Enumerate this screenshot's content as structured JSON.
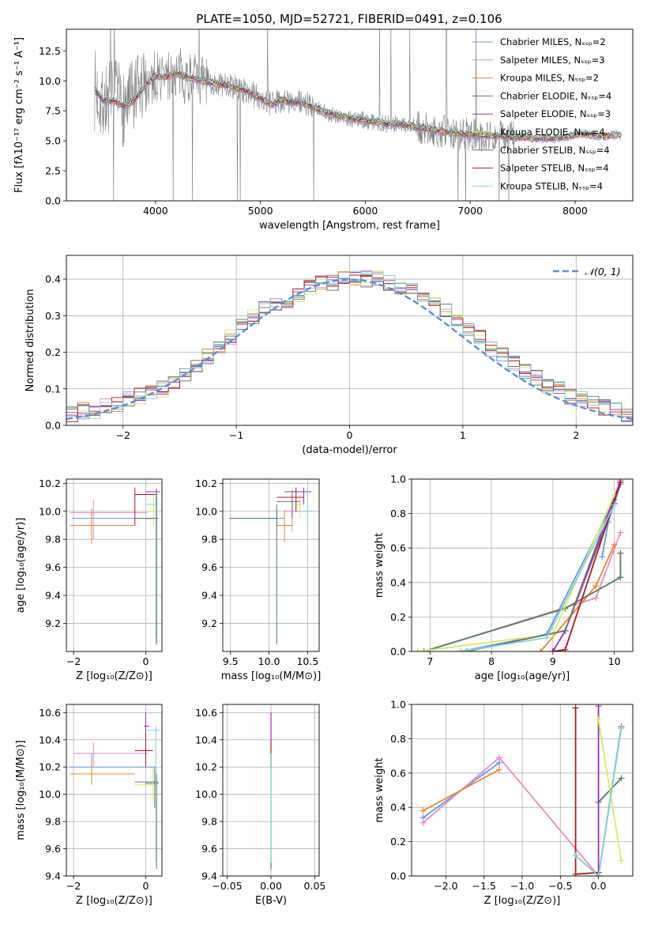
{
  "title": "PLATE=1050, MJD=52721, FIBERID=0491, z=0.106",
  "colors": [
    "#6495ED",
    "#E78AC3",
    "#E6862F",
    "#4E7F62",
    "#9B30B8",
    "#D4EE5E",
    "#6E6E6E",
    "#B0171F",
    "#7FD6D6"
  ],
  "chart_data": [
    {
      "id": "spectrum",
      "type": "line",
      "xlabel": "wavelength [Angstrom, rest frame]",
      "ylabel": "Flux [fλ10⁻¹⁷ erg cm⁻² s⁻¹ A⁻¹]",
      "xlim": [
        3150,
        8550
      ],
      "ylim": [
        0,
        14.3
      ],
      "xticks": [
        "4000",
        "5000",
        "6000",
        "7000",
        "8000"
      ],
      "xtick_values": [
        4000,
        5000,
        6000,
        7000,
        8000
      ],
      "yticks": [
        "0.0",
        "2.5",
        "5.0",
        "7.5",
        "10.0",
        "12.5"
      ],
      "ytick_values": [
        0,
        2.5,
        5,
        7.5,
        10,
        12.5
      ],
      "legend": [
        "Chabrier MILES, Nₛₛₚ=2",
        "Salpeter MILES, Nₛₛₚ=3",
        "Kroupa MILES, Nₛₛₚ=2",
        "Chabrier ELODIE, Nₛₛₚ=4",
        "Salpeter ELODIE, Nₛₛₚ=3",
        "Kroupa ELODIE, Nₛₛₚ=4",
        "Chabrier STELIB, Nₛₛₚ=4",
        "Salpeter STELIB, Nₛₛₚ=4",
        "Kroupa STELIB, Nₛₛₚ=4"
      ],
      "legend_placement": "upper-right",
      "model_x": [
        3420,
        3500,
        3600,
        3700,
        3800,
        3900,
        4000,
        4100,
        4200,
        4300,
        4400,
        4500,
        4600,
        4700,
        4800,
        4900,
        5000,
        5100,
        5200,
        5300,
        5400,
        5500,
        5600,
        5700,
        5800,
        5900,
        6000,
        6100,
        6200,
        6300,
        6400,
        6500,
        6600,
        6700,
        6800,
        6900,
        7000,
        7100,
        7200,
        7300,
        7400,
        7500,
        7600,
        7700,
        7800,
        7900,
        8000,
        8100,
        8200,
        8300,
        8400
      ],
      "model_y": [
        9.2,
        8.4,
        8.3,
        7.9,
        8.4,
        9.6,
        10.4,
        10.3,
        10.6,
        10.3,
        10.1,
        9.9,
        9.7,
        9.6,
        9.3,
        9.0,
        8.6,
        8.0,
        8.4,
        8.2,
        8.2,
        7.8,
        7.4,
        7.2,
        7.0,
        6.8,
        6.7,
        6.6,
        6.4,
        6.4,
        6.3,
        6.1,
        6.0,
        5.8,
        5.7,
        5.6,
        5.5,
        5.5,
        5.4,
        5.4,
        5.3,
        5.3,
        5.2,
        5.2,
        5.2,
        5.3,
        5.5,
        5.6,
        5.4,
        5.4,
        5.5
      ]
    },
    {
      "id": "residuals",
      "type": "step",
      "xlabel": "(data-model)/error",
      "ylabel": "Normed distribution",
      "xlim": [
        -2.5,
        2.5
      ],
      "ylim": [
        0,
        0.465
      ],
      "xticks": [
        "−2",
        "−1",
        "0",
        "1",
        "2"
      ],
      "xtick_values": [
        -2,
        -1,
        0,
        1,
        2
      ],
      "yticks": [
        "0.0",
        "0.1",
        "0.2",
        "0.3",
        "0.4"
      ],
      "ytick_values": [
        0,
        0.1,
        0.2,
        0.3,
        0.4
      ],
      "grid": true,
      "legend": [
        "𝒩(0, 1)"
      ],
      "legend_placement": "upper-right",
      "bin_edges_start": -2.5,
      "bin_width": 0.1,
      "series_heights": [
        0.03,
        0.04,
        0.04,
        0.05,
        0.06,
        0.07,
        0.08,
        0.09,
        0.1,
        0.12,
        0.14,
        0.16,
        0.19,
        0.22,
        0.24,
        0.27,
        0.3,
        0.32,
        0.33,
        0.34,
        0.36,
        0.38,
        0.39,
        0.39,
        0.4,
        0.4,
        0.4,
        0.4,
        0.39,
        0.38,
        0.37,
        0.35,
        0.33,
        0.31,
        0.29,
        0.26,
        0.24,
        0.21,
        0.19,
        0.17,
        0.15,
        0.13,
        0.11,
        0.1,
        0.08,
        0.07,
        0.06,
        0.05,
        0.04,
        0.03
      ]
    },
    {
      "id": "age-vs-Z",
      "type": "scatter",
      "xlabel": "Z [log₁₀(Z/Z⊙)]",
      "ylabel": "age  [log₁₀(age/yr)]",
      "xlim": [
        -2.2,
        0.45
      ],
      "ylim": [
        9.0,
        10.23
      ],
      "xticks": [
        "−2",
        "0"
      ],
      "xtick_values": [
        -2,
        0
      ],
      "yticks": [
        "9.2",
        "9.4",
        "9.6",
        "9.8",
        "10.0",
        "10.2"
      ],
      "ytick_values": [
        9.2,
        9.4,
        9.6,
        9.8,
        10.0,
        10.2
      ],
      "grid": true
    },
    {
      "id": "age-vs-mass",
      "type": "scatter",
      "xlabel": "mass [log₁₀(M/M⊙)]",
      "xlim": [
        9.4,
        10.65
      ],
      "ylim": [
        9.0,
        10.23
      ],
      "xticks": [
        "9.5",
        "10.0",
        "10.5"
      ],
      "xtick_values": [
        9.5,
        10.0,
        10.5
      ],
      "yticks": [
        "9.2",
        "9.4",
        "9.6",
        "9.8",
        "10.0",
        "10.2"
      ],
      "ytick_values": [
        9.2,
        9.4,
        9.6,
        9.8,
        10.0,
        10.2
      ],
      "grid": true
    },
    {
      "id": "weight-vs-age",
      "type": "line",
      "xlabel": "age  [log₁₀(age/yr)]",
      "ylabel": "mass weight",
      "xlim": [
        6.7,
        10.3
      ],
      "ylim": [
        0,
        1.0
      ],
      "xticks": [
        "7",
        "8",
        "9",
        "10"
      ],
      "xtick_values": [
        7,
        8,
        9,
        10
      ],
      "yticks": [
        "0.0",
        "0.2",
        "0.4",
        "0.6",
        "0.8",
        "1.0"
      ],
      "ytick_values": [
        0,
        0.2,
        0.4,
        0.6,
        0.8,
        1.0
      ],
      "grid": true
    },
    {
      "id": "mass-vs-Z",
      "type": "scatter",
      "xlabel": "Z [log₁₀(Z/Z⊙)]",
      "ylabel": "mass [log₁₀(M/M⊙)]",
      "xlim": [
        -2.2,
        0.45
      ],
      "ylim": [
        9.4,
        10.66
      ],
      "xticks": [
        "−2",
        "0"
      ],
      "xtick_values": [
        -2,
        0
      ],
      "yticks": [
        "9.4",
        "9.6",
        "9.8",
        "10.0",
        "10.2",
        "10.4",
        "10.6"
      ],
      "ytick_values": [
        9.4,
        9.6,
        9.8,
        10.0,
        10.2,
        10.4,
        10.6
      ],
      "grid": true
    },
    {
      "id": "mass-vs-EBV",
      "type": "scatter",
      "xlabel": "E(B-V)",
      "xlim": [
        -0.055,
        0.055
      ],
      "ylim": [
        9.4,
        10.66
      ],
      "xticks": [
        "−0.05",
        "0.00",
        "0.05"
      ],
      "xtick_values": [
        -0.05,
        0.0,
        0.05
      ],
      "yticks": [
        "9.4",
        "9.6",
        "9.8",
        "10.0",
        "10.2",
        "10.4",
        "10.6"
      ],
      "ytick_values": [
        9.4,
        9.6,
        9.8,
        10.0,
        10.2,
        10.4,
        10.6
      ],
      "grid": true
    },
    {
      "id": "weight-vs-Z",
      "type": "line",
      "xlabel": "Z [log₁₀(Z/Z⊙)]",
      "ylabel": "mass weight",
      "xlim": [
        -2.45,
        0.45
      ],
      "ylim": [
        0,
        1.0
      ],
      "xticks": [
        "−2.0",
        "−1.5",
        "−1.0",
        "−0.5",
        "0.0"
      ],
      "xtick_values": [
        -2.0,
        -1.5,
        -1.0,
        -0.5,
        0.0
      ],
      "yticks": [
        "0.0",
        "0.2",
        "0.4",
        "0.6",
        "0.8",
        "1.0"
      ],
      "ytick_values": [
        0,
        0.2,
        0.4,
        0.6,
        0.8,
        1.0
      ],
      "grid": true
    }
  ]
}
